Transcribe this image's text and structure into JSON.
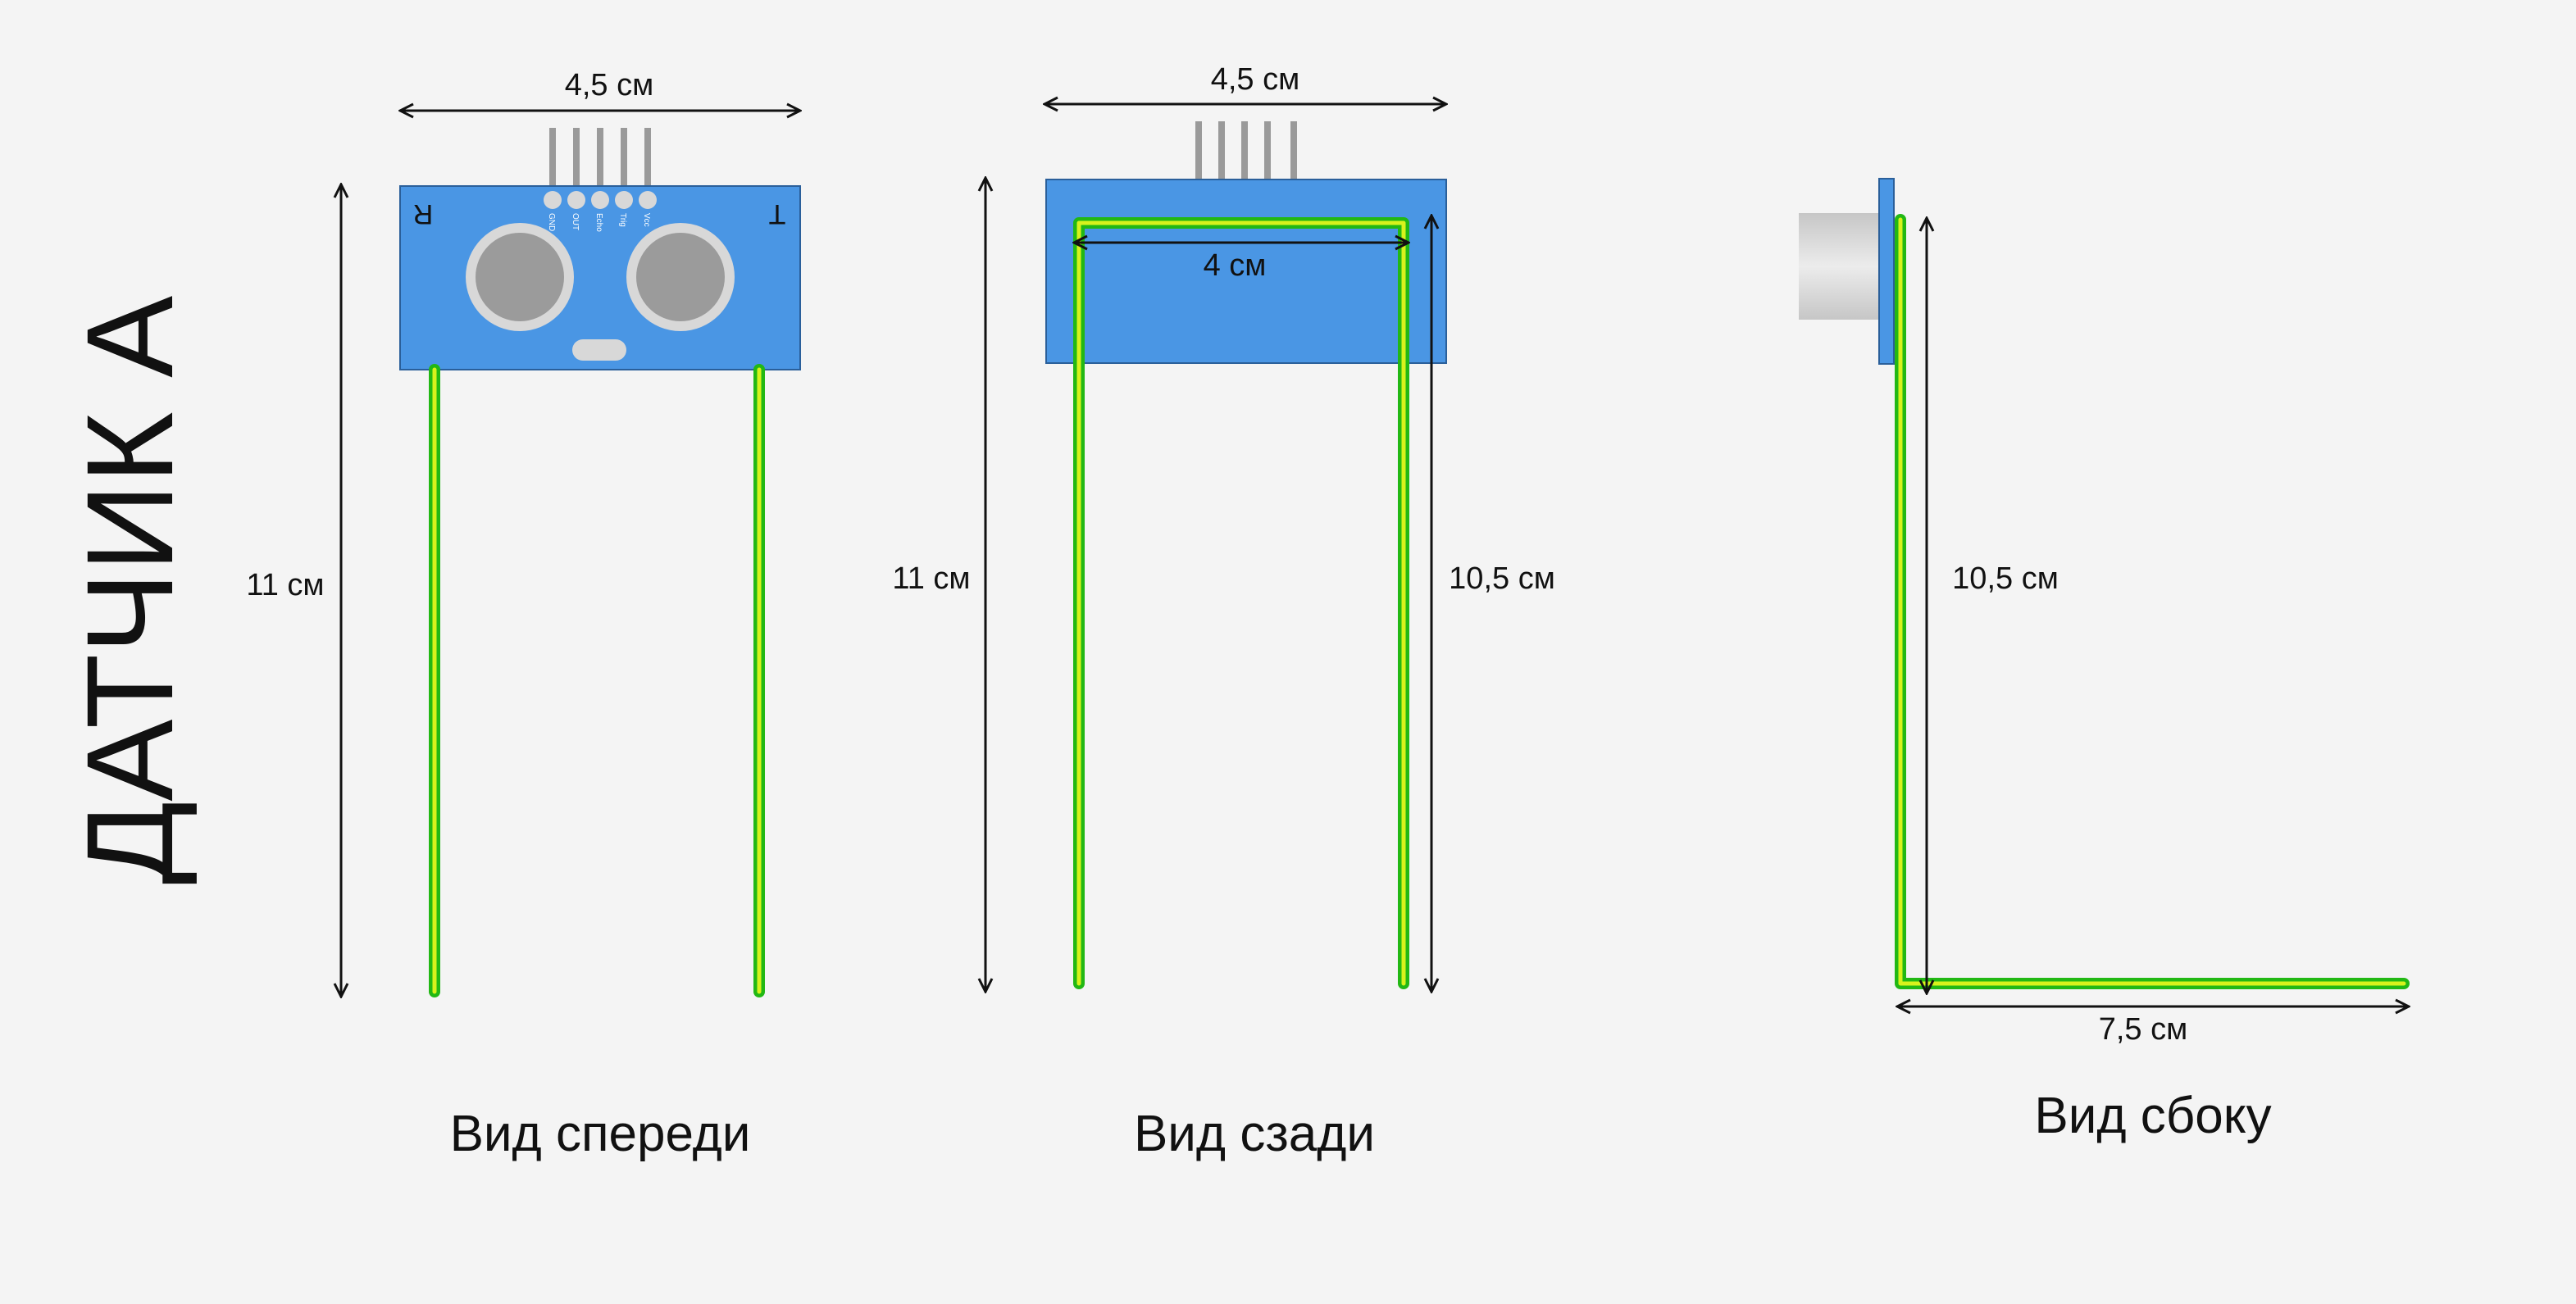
{
  "title": "ДАТЧИК А",
  "views": {
    "front": {
      "caption": "Вид спереди",
      "width_label": "4,5 см",
      "height_label": "11 см",
      "board_left_mark": "R",
      "board_right_mark": "T",
      "pin_labels": [
        "GND",
        "OUT",
        "Echo",
        "Trig",
        "Vcc"
      ]
    },
    "back": {
      "caption": "Вид сзади",
      "width_label": "4,5 см",
      "inner_width_label": "4 см",
      "height_label": "11 см",
      "wire_height_label": "10,5 см"
    },
    "side": {
      "caption": "Вид сбоку",
      "wire_height_label": "10,5 см",
      "base_length_label": "7,5 см"
    }
  },
  "colors": {
    "board": "#4a96e4",
    "wire": "#22b814",
    "wire_highlight": "#d8f21c",
    "pins": "#9a9a9a",
    "transducer_ring": "#d8d8d8",
    "transducer_core": "#9b9b9b"
  }
}
